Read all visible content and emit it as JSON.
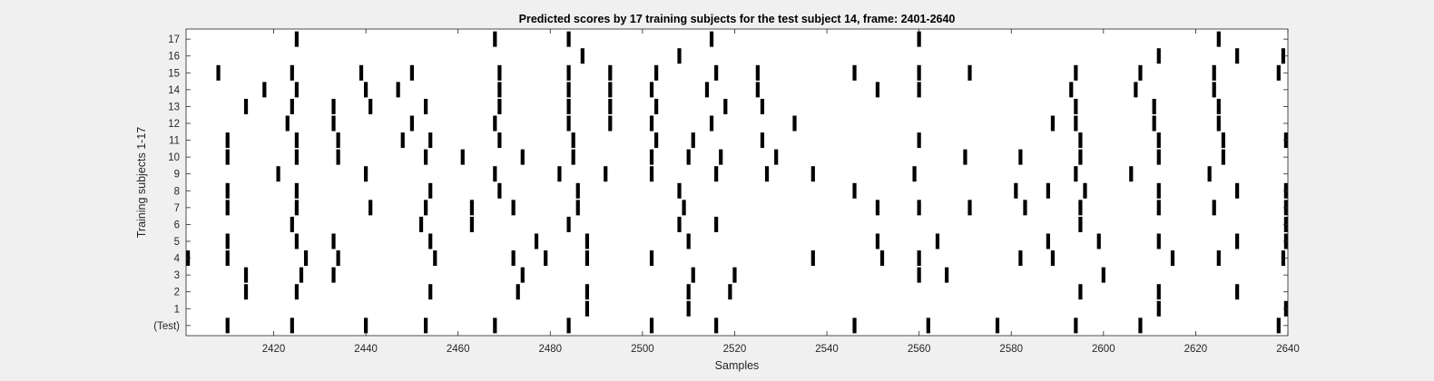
{
  "chart_data": {
    "type": "heatmap",
    "title": "Predicted scores by 17 training subjects for the test subject 14, frame: 2401-2640",
    "xlabel": "Samples",
    "ylabel": "Training subjects 1-17",
    "xlim": [
      2401,
      2640
    ],
    "x_ticks": [
      2420,
      2440,
      2460,
      2480,
      2500,
      2520,
      2540,
      2560,
      2580,
      2600,
      2620,
      2640
    ],
    "y_tick_labels": [
      "(Test)",
      "1",
      "2",
      "3",
      "4",
      "5",
      "6",
      "7",
      "8",
      "9",
      "10",
      "11",
      "12",
      "13",
      "14",
      "15",
      "16",
      "17"
    ],
    "colors": {
      "event": "#000000",
      "background": "#ffffff",
      "figure": "#f0f0f0"
    },
    "rows": [
      {
        "label": "(Test)",
        "x": [
          2410,
          2424,
          2440,
          2453,
          2468,
          2484,
          2502,
          2516,
          2546,
          2562,
          2577,
          2594,
          2608,
          2638
        ]
      },
      {
        "label": "1",
        "x": [
          2488,
          2510,
          2612,
          2641
        ]
      },
      {
        "label": "2",
        "x": [
          2414,
          2425,
          2454,
          2473,
          2488,
          2510,
          2519,
          2595,
          2612,
          2629
        ]
      },
      {
        "label": "3",
        "x": [
          2414,
          2426,
          2433,
          2474,
          2511,
          2520,
          2560,
          2566,
          2600
        ]
      },
      {
        "label": "4",
        "x": [
          2401,
          2410,
          2427,
          2434,
          2455,
          2472,
          2479,
          2488,
          2502,
          2537,
          2552,
          2560,
          2582,
          2589,
          2615,
          2625,
          2639
        ]
      },
      {
        "label": "5",
        "x": [
          2410,
          2425,
          2433,
          2454,
          2477,
          2488,
          2510,
          2551,
          2564,
          2588,
          2599,
          2612,
          2629,
          2641
        ]
      },
      {
        "label": "6",
        "x": [
          2424,
          2452,
          2463,
          2484,
          2508,
          2516,
          2595,
          2640
        ]
      },
      {
        "label": "7",
        "x": [
          2410,
          2425,
          2441,
          2453,
          2463,
          2472,
          2486,
          2509,
          2551,
          2560,
          2571,
          2583,
          2595,
          2612,
          2624,
          2640
        ]
      },
      {
        "label": "8",
        "x": [
          2410,
          2425,
          2454,
          2469,
          2486,
          2508,
          2546,
          2581,
          2588,
          2596,
          2612,
          2629,
          2641
        ]
      },
      {
        "label": "9",
        "x": [
          2421,
          2440,
          2468,
          2482,
          2492,
          2502,
          2516,
          2527,
          2537,
          2559,
          2594,
          2606,
          2623
        ]
      },
      {
        "label": "10",
        "x": [
          2410,
          2425,
          2434,
          2453,
          2461,
          2474,
          2485,
          2502,
          2510,
          2517,
          2529,
          2570,
          2582,
          2595,
          2612,
          2626
        ]
      },
      {
        "label": "11",
        "x": [
          2410,
          2425,
          2434,
          2448,
          2454,
          2469,
          2485,
          2503,
          2511,
          2526,
          2560,
          2595,
          2612,
          2626,
          2641
        ]
      },
      {
        "label": "12",
        "x": [
          2423,
          2433,
          2450,
          2468,
          2484,
          2493,
          2502,
          2515,
          2533,
          2589,
          2594,
          2611,
          2625
        ]
      },
      {
        "label": "13",
        "x": [
          2414,
          2424,
          2433,
          2441,
          2453,
          2469,
          2484,
          2493,
          2503,
          2518,
          2526,
          2594,
          2611,
          2625
        ]
      },
      {
        "label": "14",
        "x": [
          2418,
          2425,
          2440,
          2447,
          2469,
          2484,
          2493,
          2502,
          2514,
          2525,
          2551,
          2560,
          2593,
          2607,
          2624
        ]
      },
      {
        "label": "15",
        "x": [
          2408,
          2424,
          2439,
          2450,
          2469,
          2484,
          2493,
          2503,
          2516,
          2525,
          2546,
          2560,
          2571,
          2594,
          2608,
          2624,
          2638
        ]
      },
      {
        "label": "16",
        "x": [
          2487,
          2508,
          2612,
          2629,
          2639
        ]
      },
      {
        "label": "17",
        "x": [
          2425,
          2468,
          2484,
          2515,
          2560,
          2625
        ]
      }
    ]
  }
}
